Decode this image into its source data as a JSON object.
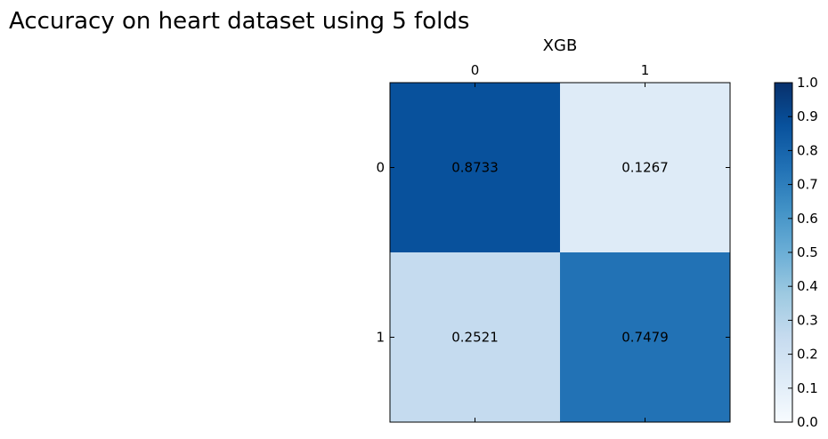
{
  "chart_data": {
    "type": "heatmap",
    "title": "Accuracy on heart dataset using 5 folds",
    "subtitle": "XGB",
    "x_categories": [
      "0",
      "1"
    ],
    "y_categories": [
      "0",
      "1"
    ],
    "values": [
      [
        0.8733,
        0.1267
      ],
      [
        0.2521,
        0.7479
      ]
    ],
    "value_labels": [
      [
        "0.8733",
        "0.1267"
      ],
      [
        "0.2521",
        "0.7479"
      ]
    ],
    "x_axis_position": "top",
    "colormap": "Blues",
    "colorbar": {
      "range": [
        0.0,
        1.0
      ],
      "ticks": [
        "0.0",
        "0.1",
        "0.2",
        "0.3",
        "0.4",
        "0.5",
        "0.6",
        "0.7",
        "0.8",
        "0.9",
        "1.0"
      ],
      "placement": "right"
    },
    "grid": false
  },
  "colors": {
    "colormap_stops": [
      "#f7fbff",
      "#deebf7",
      "#c6dbef",
      "#9ecae1",
      "#6baed6",
      "#4292c6",
      "#2171b5",
      "#08519c",
      "#08306b"
    ]
  }
}
